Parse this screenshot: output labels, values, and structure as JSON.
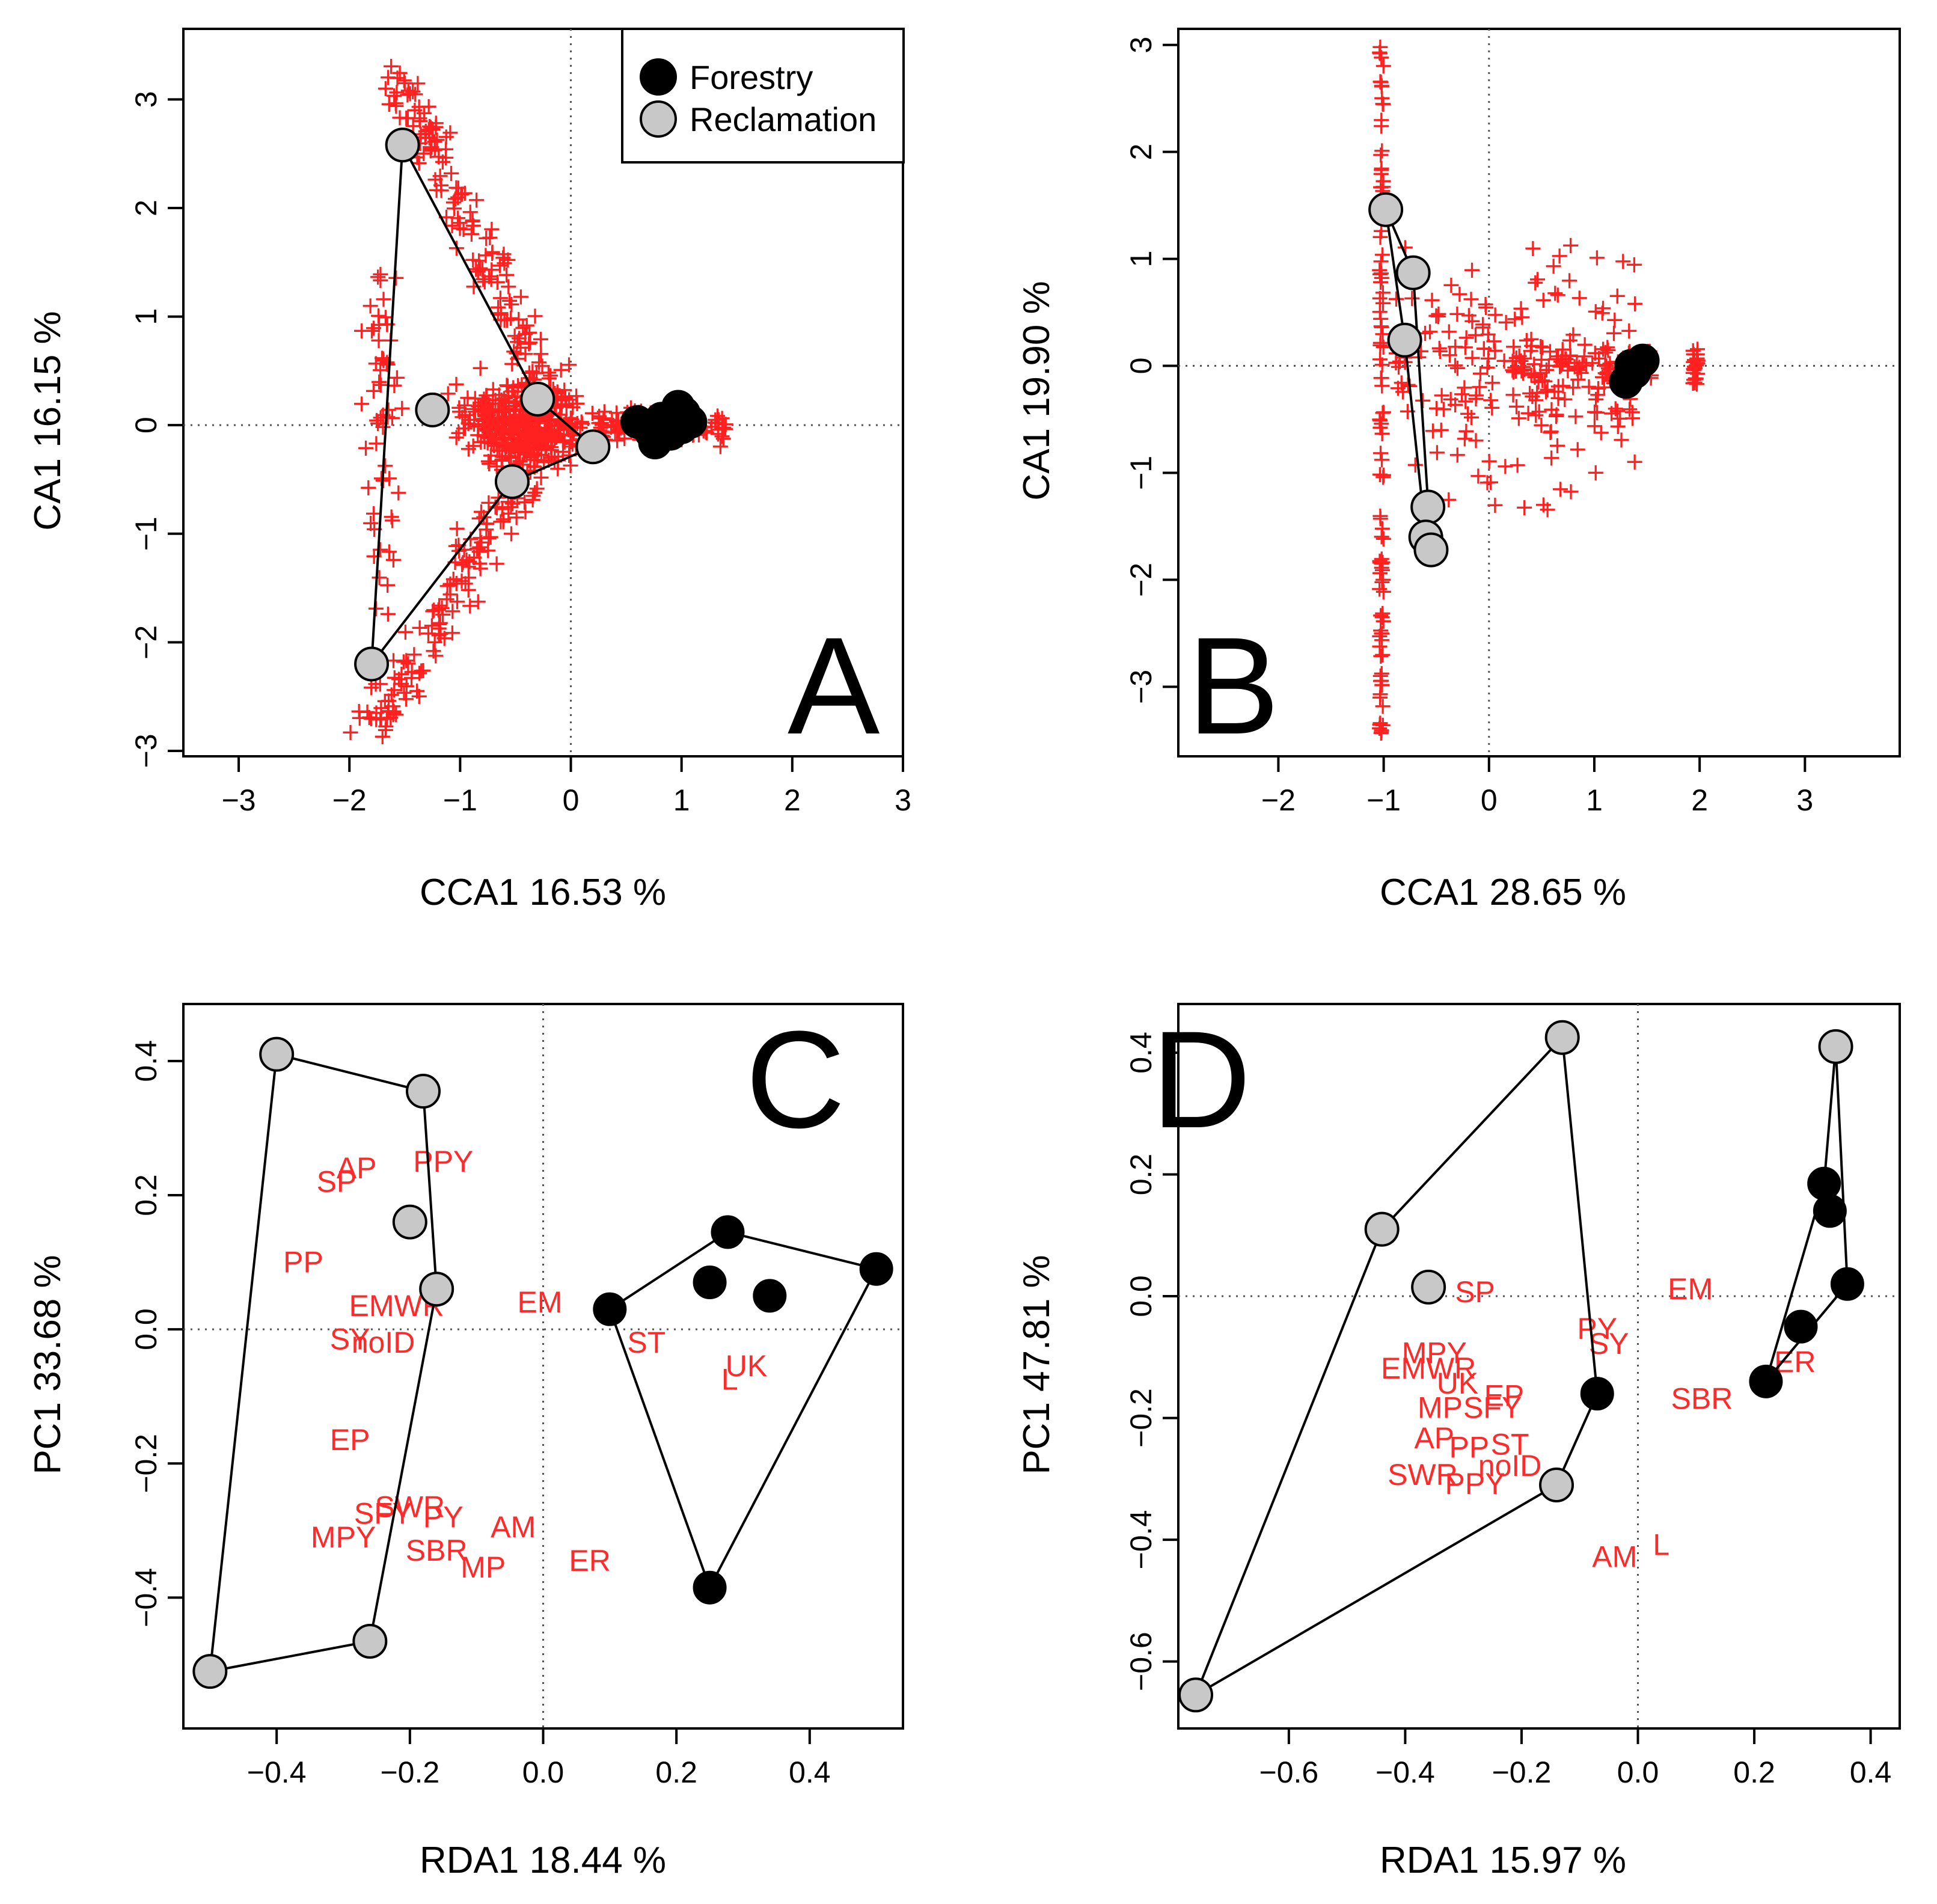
{
  "colors": {
    "forestry": "#000000",
    "reclamation": "#c8c8c8",
    "species": "#ff2020",
    "hull": "#000000"
  },
  "legend": {
    "items": [
      {
        "label": "Forestry",
        "color": "#000000"
      },
      {
        "label": "Reclamation",
        "color": "#c8c8c8"
      }
    ]
  },
  "chart_data": [
    {
      "type": "scatter",
      "panel": "A",
      "xlabel": "CCA1  16.53 %",
      "ylabel": "CA1  16.15 %",
      "xlim": [
        -3.5,
        3
      ],
      "ylim": [
        -3.05,
        3.65
      ],
      "xticks": [
        -3,
        -2,
        -1,
        0,
        1,
        2,
        3
      ],
      "xtick_labels": [
        "−3",
        "−2",
        "−1",
        "0",
        "1",
        "2",
        "3"
      ],
      "yticks": [
        -3,
        -2,
        -1,
        0,
        1,
        2,
        3
      ],
      "ytick_labels": [
        "−3",
        "−2",
        "−1",
        "0",
        "1",
        "2",
        "3"
      ],
      "reclamation": [
        [
          -1.52,
          2.58
        ],
        [
          -1.25,
          0.14
        ],
        [
          -0.3,
          0.24
        ],
        [
          0.2,
          -0.2
        ],
        [
          -0.53,
          -0.52
        ],
        [
          -1.8,
          -2.2
        ]
      ],
      "reclamation_hull": [
        [
          -1.52,
          2.58
        ],
        [
          -0.3,
          0.24
        ],
        [
          0.2,
          -0.2
        ],
        [
          -0.53,
          -0.52
        ],
        [
          -1.8,
          -2.2
        ]
      ],
      "forestry": [
        [
          0.6,
          0.03
        ],
        [
          0.72,
          -0.06
        ],
        [
          0.76,
          -0.16
        ],
        [
          0.88,
          0.0
        ],
        [
          0.97,
          0.17
        ],
        [
          1.02,
          0.11
        ],
        [
          1.08,
          0.03
        ],
        [
          0.9,
          -0.08
        ],
        [
          1.0,
          -0.02
        ],
        [
          0.82,
          0.06
        ]
      ],
      "forestry_hull": [
        [
          0.6,
          0.03
        ],
        [
          0.97,
          0.17
        ],
        [
          1.08,
          0.03
        ],
        [
          0.76,
          -0.16
        ]
      ],
      "species_points_note": "dense cloud of red + species scores"
    },
    {
      "type": "scatter",
      "panel": "B",
      "xlabel": "CCA1  28.65 %",
      "ylabel": "CA1  19.90 %",
      "xlim": [
        -2.95,
        3.9
      ],
      "ylim": [
        -3.65,
        3.15
      ],
      "xticks": [
        -2,
        -1,
        0,
        1,
        2,
        3
      ],
      "xtick_labels": [
        "−2",
        "−1",
        "0",
        "1",
        "2",
        "3"
      ],
      "yticks": [
        -3,
        -2,
        -1,
        0,
        1,
        2,
        3
      ],
      "ytick_labels": [
        "−3",
        "−2",
        "−1",
        "0",
        "1",
        "2",
        "3"
      ],
      "reclamation": [
        [
          -0.98,
          1.46
        ],
        [
          -0.72,
          0.87
        ],
        [
          -0.8,
          0.24
        ],
        [
          -0.58,
          -1.32
        ],
        [
          -0.6,
          -1.6
        ],
        [
          -0.55,
          -1.72
        ]
      ],
      "reclamation_hull": [
        [
          -0.98,
          1.46
        ],
        [
          -0.72,
          0.87
        ],
        [
          -0.55,
          -1.72
        ],
        [
          -0.6,
          -1.6
        ],
        [
          -0.8,
          0.24
        ]
      ],
      "forestry": [
        [
          1.3,
          -0.15
        ],
        [
          1.35,
          0.0
        ],
        [
          1.42,
          0.02
        ],
        [
          1.46,
          0.05
        ],
        [
          1.38,
          -0.06
        ]
      ],
      "forestry_hull": [
        [
          1.3,
          -0.15
        ],
        [
          1.46,
          0.05
        ],
        [
          1.35,
          0.0
        ]
      ],
      "species_points_note": "red + species scores, column at x = -1 and spread to the right"
    },
    {
      "type": "scatter",
      "panel": "C",
      "xlabel": "RDA1  18.44 %",
      "ylabel": "PC1  33.68 %",
      "xlim": [
        -0.54,
        0.54
      ],
      "ylim": [
        -0.595,
        0.485
      ],
      "xticks": [
        -0.4,
        -0.2,
        0.0,
        0.2,
        0.4
      ],
      "xtick_labels": [
        "−0.4",
        "−0.2",
        "0.0",
        "0.2",
        "0.4"
      ],
      "yticks": [
        -0.4,
        -0.2,
        0.0,
        0.2,
        0.4
      ],
      "ytick_labels": [
        "−0.4",
        "−0.2",
        "0.0",
        "0.2",
        "0.4"
      ],
      "reclamation": [
        [
          -0.4,
          0.41
        ],
        [
          -0.18,
          0.355
        ],
        [
          -0.2,
          0.16
        ],
        [
          -0.16,
          0.06
        ],
        [
          -0.26,
          -0.465
        ],
        [
          -0.5,
          -0.51
        ]
      ],
      "reclamation_hull": [
        [
          -0.4,
          0.41
        ],
        [
          -0.18,
          0.355
        ],
        [
          -0.16,
          0.06
        ],
        [
          -0.26,
          -0.465
        ],
        [
          -0.5,
          -0.51
        ]
      ],
      "forestry": [
        [
          0.1,
          0.03
        ],
        [
          0.277,
          0.145
        ],
        [
          0.5,
          0.09
        ],
        [
          0.25,
          0.07
        ],
        [
          0.34,
          0.05
        ],
        [
          0.25,
          -0.385
        ]
      ],
      "forestry_hull": [
        [
          0.1,
          0.03
        ],
        [
          0.277,
          0.145
        ],
        [
          0.5,
          0.09
        ],
        [
          0.25,
          -0.385
        ]
      ],
      "species_labels": [
        {
          "text": "AP",
          "x": -0.28,
          "y": 0.225
        },
        {
          "text": "SP",
          "x": -0.31,
          "y": 0.205
        },
        {
          "text": "PPY",
          "x": -0.15,
          "y": 0.235
        },
        {
          "text": "PP",
          "x": -0.36,
          "y": 0.085
        },
        {
          "text": "EMWR",
          "x": -0.22,
          "y": 0.02
        },
        {
          "text": "EM",
          "x": -0.005,
          "y": 0.025
        },
        {
          "text": "SY",
          "x": -0.29,
          "y": -0.03
        },
        {
          "text": "noID",
          "x": -0.24,
          "y": -0.035
        },
        {
          "text": "ST",
          "x": 0.155,
          "y": -0.035
        },
        {
          "text": "UK",
          "x": 0.305,
          "y": -0.07
        },
        {
          "text": "L",
          "x": 0.28,
          "y": -0.09
        },
        {
          "text": "EP",
          "x": -0.29,
          "y": -0.18
        },
        {
          "text": "SWR",
          "x": -0.2,
          "y": -0.28
        },
        {
          "text": "SFY",
          "x": -0.24,
          "y": -0.29
        },
        {
          "text": "PY",
          "x": -0.15,
          "y": -0.295
        },
        {
          "text": "MPY",
          "x": -0.3,
          "y": -0.325
        },
        {
          "text": "SBR",
          "x": -0.16,
          "y": -0.345
        },
        {
          "text": "AM",
          "x": -0.045,
          "y": -0.31
        },
        {
          "text": "MP",
          "x": -0.09,
          "y": -0.37
        },
        {
          "text": "ER",
          "x": 0.07,
          "y": -0.36
        }
      ]
    },
    {
      "type": "scatter",
      "panel": "D",
      "xlabel": "RDA1  15.97 %",
      "ylabel": "PC1  47.81 %",
      "xlim": [
        -0.79,
        0.45
      ],
      "ylim": [
        -0.71,
        0.48
      ],
      "xticks": [
        -0.6,
        -0.4,
        -0.2,
        0.0,
        0.2,
        0.4
      ],
      "xtick_labels": [
        "−0.6",
        "−0.4",
        "−0.2",
        "0.0",
        "0.2",
        "0.4"
      ],
      "yticks": [
        -0.6,
        -0.4,
        -0.2,
        0.0,
        0.2,
        0.4
      ],
      "ytick_labels": [
        "−0.6",
        "−0.4",
        "−0.2",
        "0.0",
        "0.2",
        "0.4"
      ],
      "reclamation": [
        [
          -0.13,
          0.425
        ],
        [
          -0.44,
          0.11
        ],
        [
          -0.36,
          0.015
        ],
        [
          -0.14,
          -0.31
        ],
        [
          -0.76,
          -0.655
        ],
        [
          0.34,
          0.41
        ]
      ],
      "reclamation_hull_1": [
        [
          -0.13,
          0.425
        ],
        [
          -0.44,
          0.11
        ],
        [
          -0.76,
          -0.655
        ],
        [
          -0.14,
          -0.31
        ],
        [
          -0.07,
          -0.16
        ]
      ],
      "forestry": [
        [
          -0.07,
          -0.16
        ],
        [
          0.32,
          0.185
        ],
        [
          0.33,
          0.14
        ],
        [
          0.36,
          0.02
        ],
        [
          0.28,
          -0.05
        ],
        [
          0.22,
          -0.14
        ]
      ],
      "forestry_hull": [
        [
          0.34,
          0.41
        ],
        [
          0.36,
          0.02
        ],
        [
          0.22,
          -0.14
        ],
        [
          0.32,
          0.185
        ]
      ],
      "species_labels": [
        {
          "text": "SP",
          "x": -0.28,
          "y": -0.01
        },
        {
          "text": "PY",
          "x": -0.07,
          "y": -0.07
        },
        {
          "text": "SY",
          "x": -0.05,
          "y": -0.095
        },
        {
          "text": "EM",
          "x": 0.09,
          "y": -0.005
        },
        {
          "text": "MPY",
          "x": -0.35,
          "y": -0.11
        },
        {
          "text": "EMWR",
          "x": -0.36,
          "y": -0.135
        },
        {
          "text": "UK",
          "x": -0.31,
          "y": -0.16
        },
        {
          "text": "EP",
          "x": -0.23,
          "y": -0.18
        },
        {
          "text": "SFY",
          "x": -0.25,
          "y": -0.2
        },
        {
          "text": "MP",
          "x": -0.34,
          "y": -0.2
        },
        {
          "text": "SBR",
          "x": 0.11,
          "y": -0.185
        },
        {
          "text": "ER",
          "x": 0.27,
          "y": -0.125
        },
        {
          "text": "AP",
          "x": -0.35,
          "y": -0.25
        },
        {
          "text": "PP",
          "x": -0.29,
          "y": -0.265
        },
        {
          "text": "ST",
          "x": -0.22,
          "y": -0.26
        },
        {
          "text": "noID",
          "x": -0.22,
          "y": -0.295
        },
        {
          "text": "SWR",
          "x": -0.37,
          "y": -0.31
        },
        {
          "text": "PPY",
          "x": -0.28,
          "y": -0.325
        },
        {
          "text": "AM",
          "x": -0.04,
          "y": -0.445
        },
        {
          "text": "L",
          "x": 0.04,
          "y": -0.425
        }
      ]
    }
  ]
}
